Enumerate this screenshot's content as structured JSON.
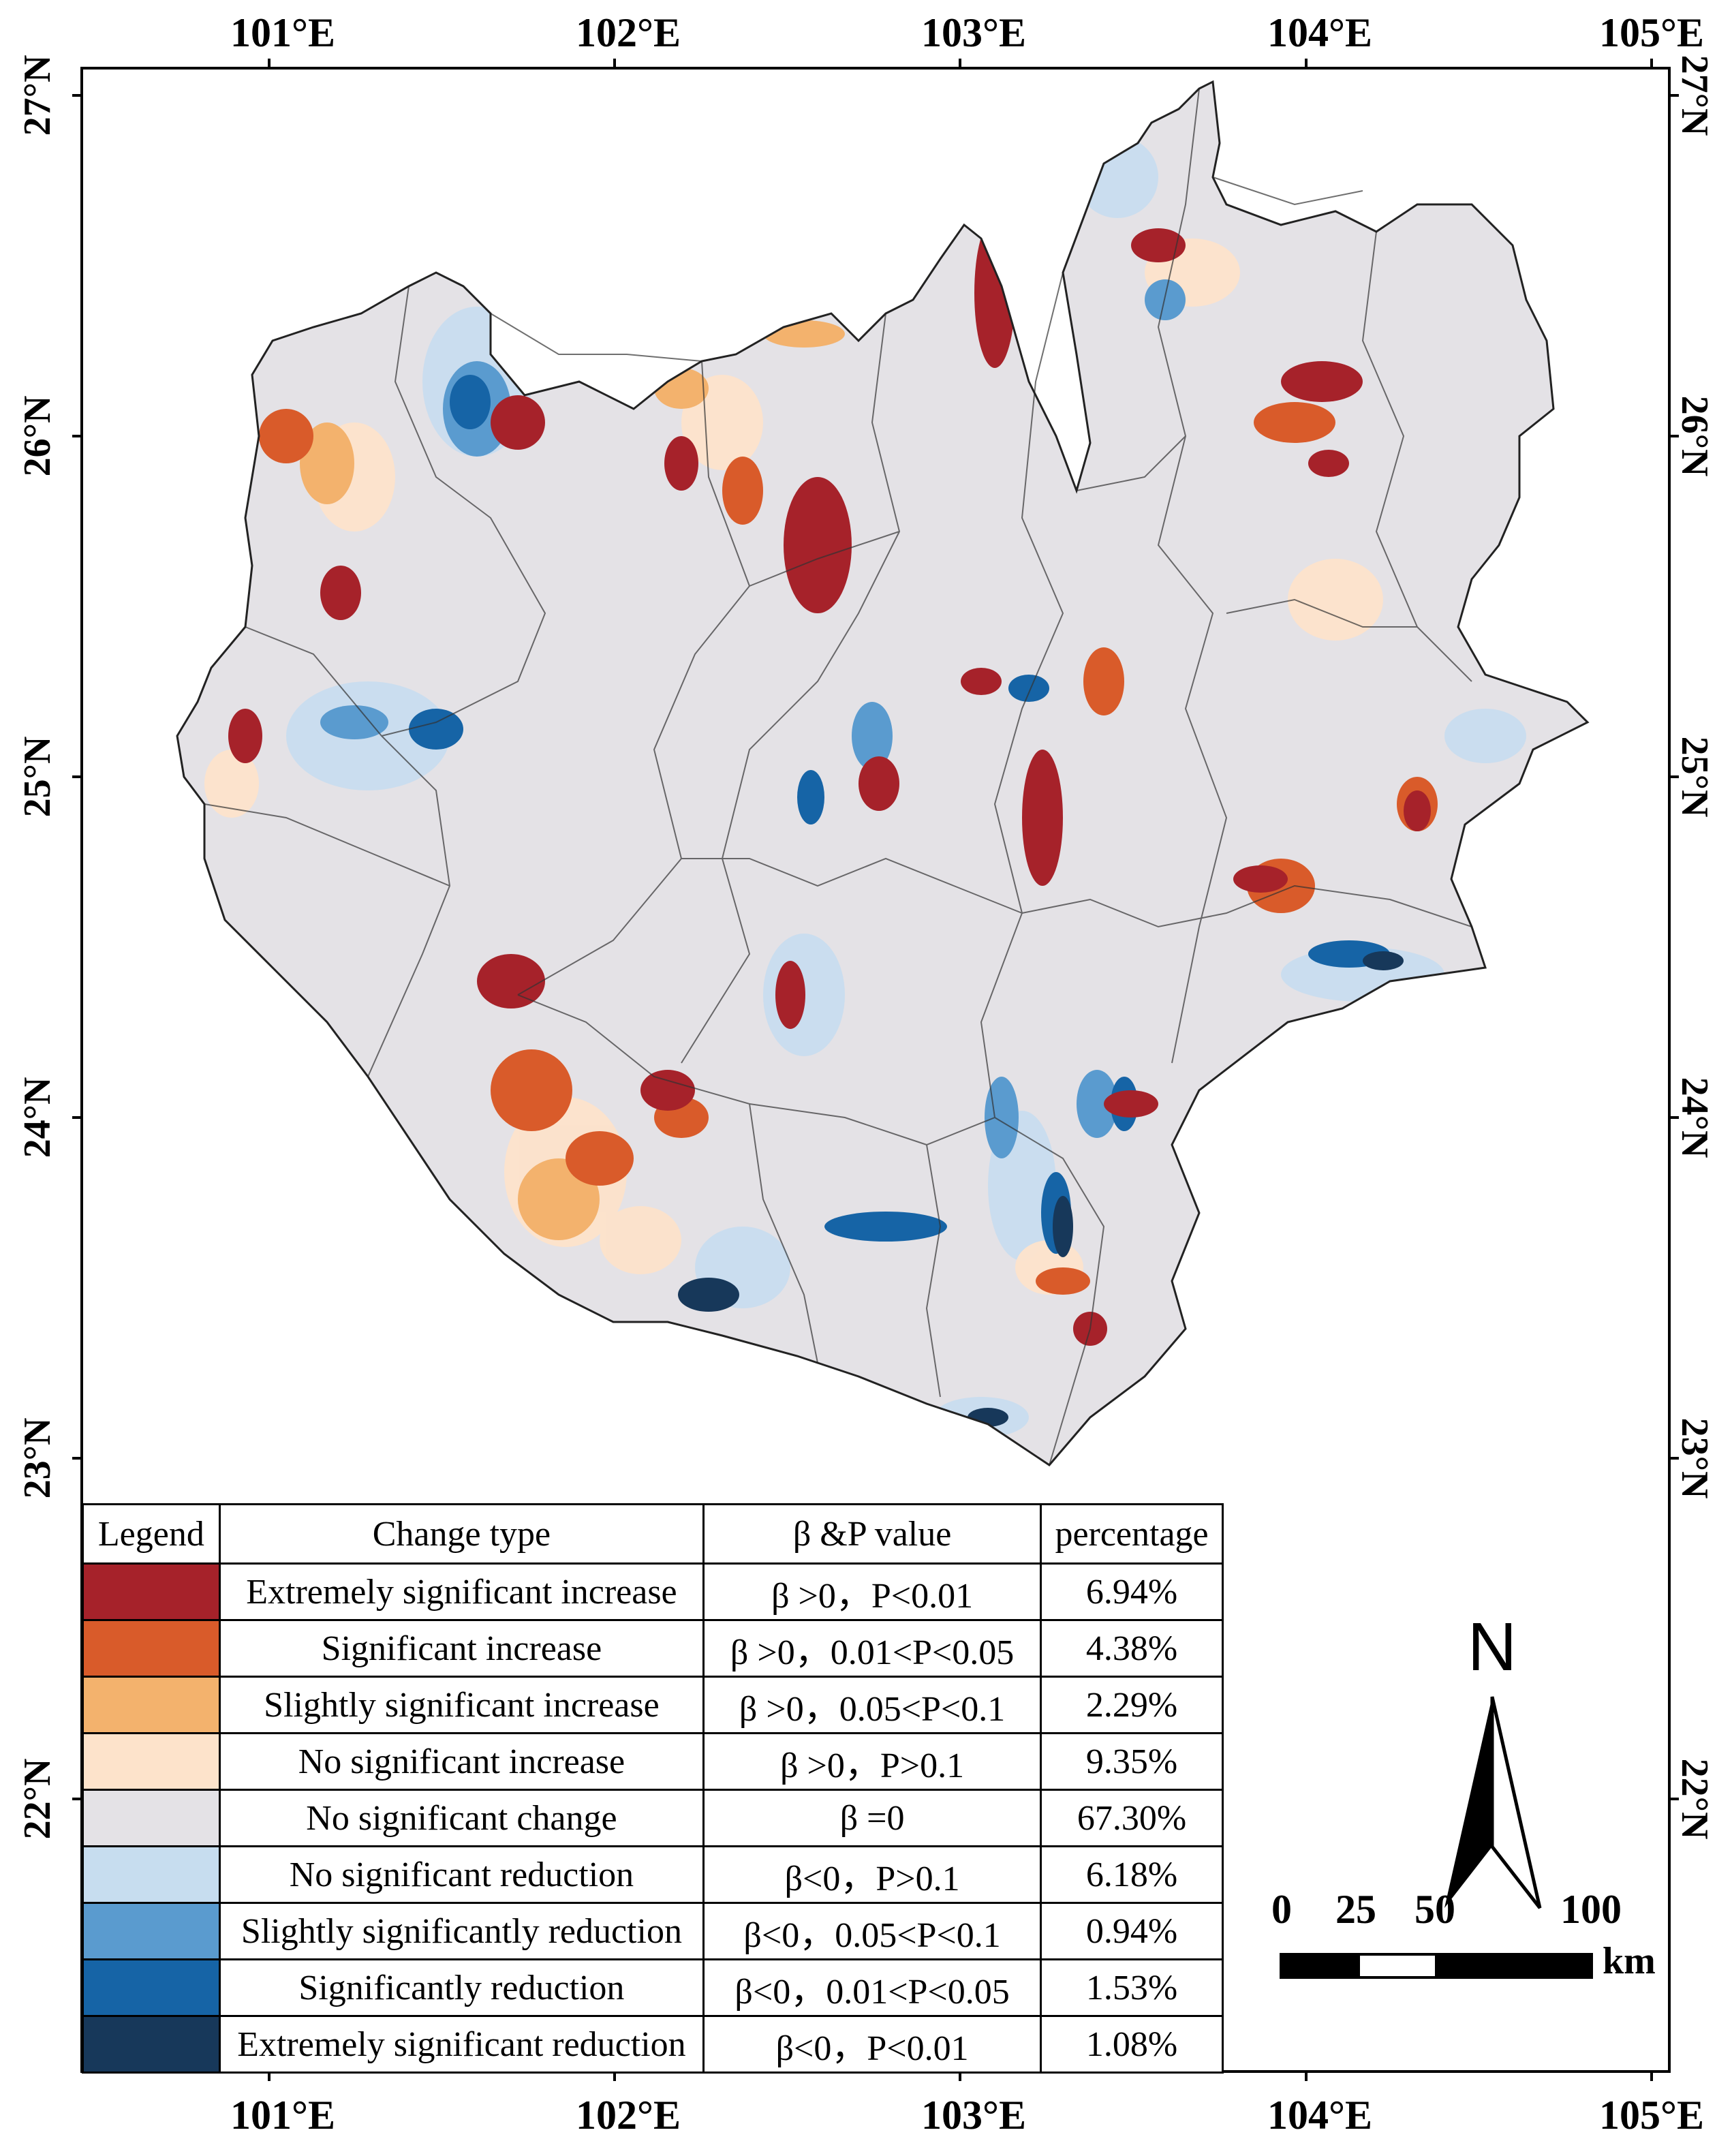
{
  "axes": {
    "longitudes": [
      "101°E",
      "102°E",
      "103°E",
      "104°E",
      "105°E"
    ],
    "latitudes": [
      "27°N",
      "26°N",
      "25°N",
      "24°N",
      "23°N",
      "22°N"
    ]
  },
  "legend": {
    "headers": {
      "legend": "Legend",
      "type": "Change type",
      "bp": "β &P value",
      "pct": "percentage"
    },
    "rows": [
      {
        "color": "#a6222a",
        "type": "Extremely significant increase",
        "bp": "β >0，P<0.01",
        "pct": "6.94%"
      },
      {
        "color": "#d95b2a",
        "type": "Significant increase",
        "bp": "β >0，0.01<P<0.05",
        "pct": "4.38%"
      },
      {
        "color": "#f3b26d",
        "type": "Slightly significant increase",
        "bp": "β >0，0.05<P<0.1",
        "pct": "2.29%"
      },
      {
        "color": "#fde3cb",
        "type": "No significant increase",
        "bp": "β >0，P>0.1",
        "pct": "9.35%"
      },
      {
        "color": "#e4e2e6",
        "type": "No significant change",
        "bp": "β =0",
        "pct": "67.30%"
      },
      {
        "color": "#c7ddef",
        "type": "No significant reduction",
        "bp": "β<0，P>0.1",
        "pct": "6.18%"
      },
      {
        "color": "#5a9bcf",
        "type": "Slightly significantly reduction",
        "bp": "β<0，0.05<P<0.1",
        "pct": "0.94%"
      },
      {
        "color": "#1664a6",
        "type": "Significantly reduction",
        "bp": "β<0，0.01<P<0.05",
        "pct": "1.53%"
      },
      {
        "color": "#17385a",
        "type": "Extremely significant reduction",
        "bp": "β<0，P<0.01",
        "pct": "1.08%"
      }
    ]
  },
  "north_arrow": {
    "label": "N"
  },
  "scale_bar": {
    "ticks": [
      "0",
      "25",
      "50",
      "100"
    ],
    "unit": "km"
  },
  "map_colors": {
    "background": "#e4e2e6",
    "outline": "#333333"
  }
}
